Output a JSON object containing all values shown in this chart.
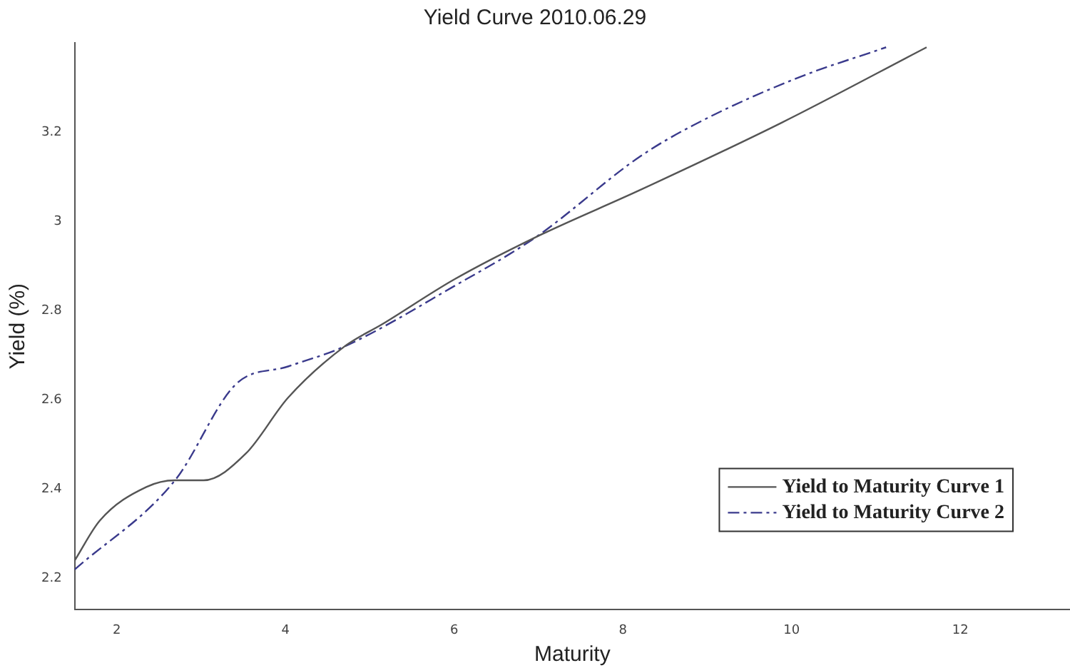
{
  "chart_data": {
    "type": "line",
    "title": "Yield Curve 2010.06.29",
    "xlabel": "Maturity",
    "ylabel": "Yield (%)",
    "xlim": [
      1.5,
      13.3
    ],
    "xticks": [
      2,
      4,
      6,
      8,
      10,
      12
    ],
    "ylim": [
      2.13,
      3.4
    ],
    "yticks": [
      2.2,
      2.4,
      2.6,
      2.8,
      3,
      3.2
    ],
    "grid": false,
    "legend": "bottom right",
    "marker": "none",
    "series": [
      {
        "name": "Yield to Maturity Curve 1",
        "color": "#555555",
        "line_style": "solid",
        "x": [
          1.5,
          1.8,
          2.35,
          2.69,
          3.03,
          3.53,
          4.03,
          4.7,
          5.15,
          6,
          6.97,
          8.2,
          9.87,
          11.6
        ],
        "values": [
          2.24,
          2.33,
          2.405,
          2.42,
          2.42,
          2.48,
          2.605,
          2.72,
          2.77,
          2.87,
          2.965,
          3.07,
          3.22,
          3.39
        ]
      },
      {
        "name": "Yield to Maturity Curve 2",
        "color": "#3a3a8c",
        "line_style": "dashdot",
        "x": [
          1.5,
          2.69,
          3.41,
          4.03,
          4.7,
          6,
          6.97,
          8.2,
          8.83,
          10.05,
          11.12
        ],
        "values": [
          2.22,
          2.42,
          2.635,
          2.675,
          2.72,
          2.855,
          2.965,
          3.145,
          3.215,
          3.32,
          3.39
        ]
      }
    ]
  }
}
